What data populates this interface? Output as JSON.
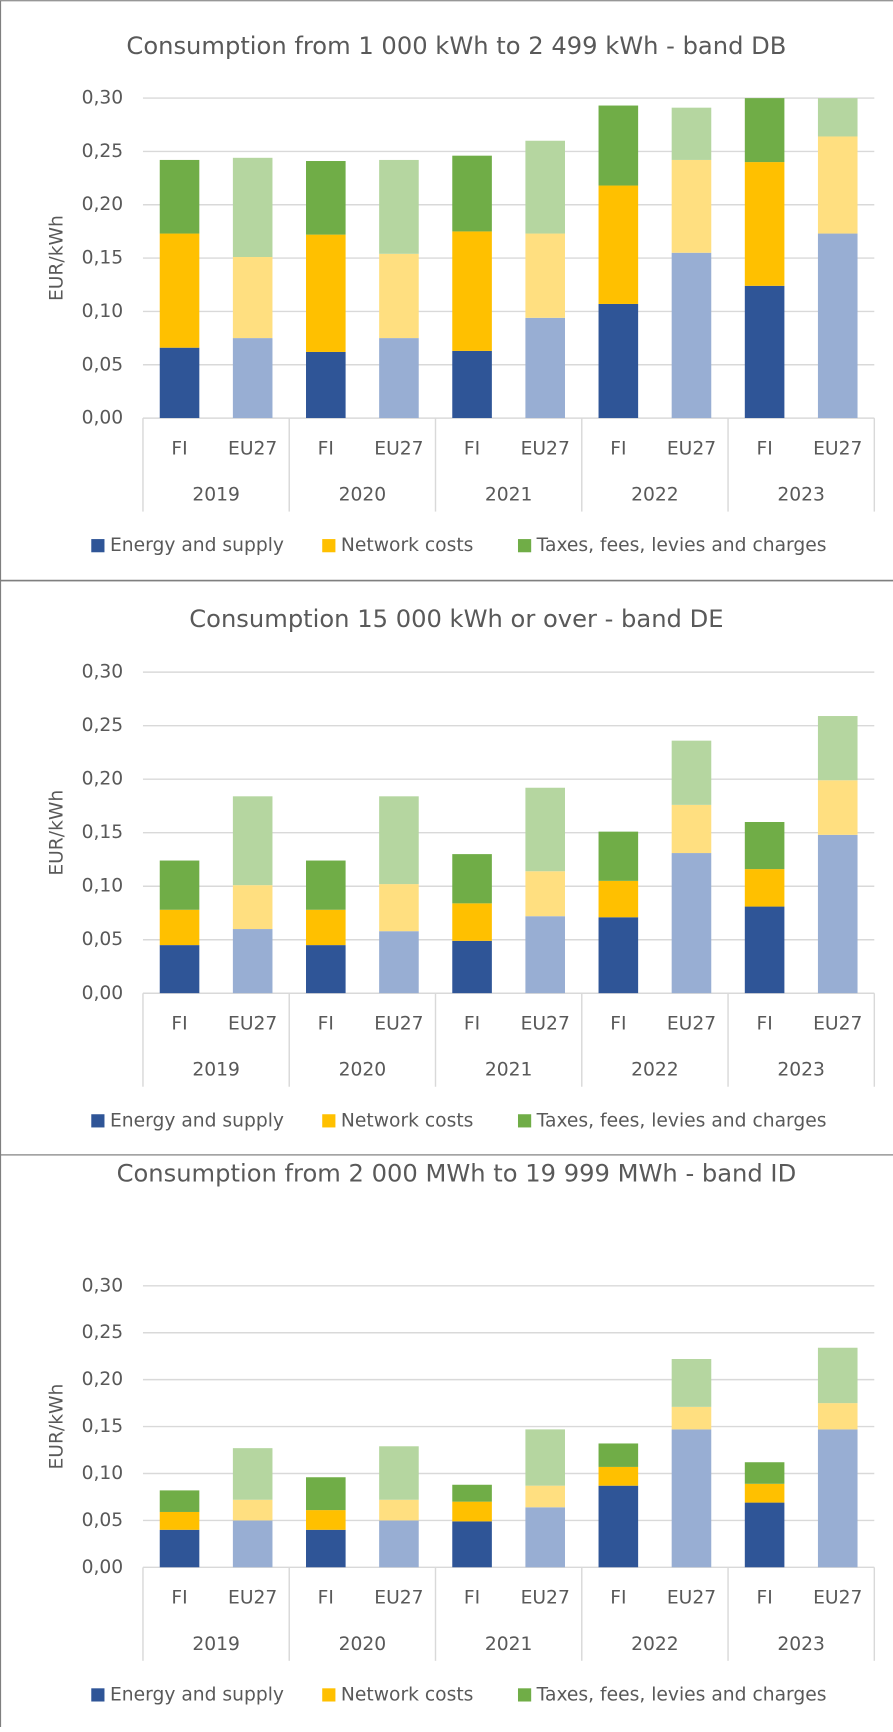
{
  "chart_data": [
    {
      "type": "bar",
      "stacked": true,
      "title": "Consumption from 1 000 kWh to 2 499 kWh - band DB",
      "ylabel": "EUR/kWh",
      "categories": [
        "FI",
        "EU27",
        "FI",
        "EU27",
        "FI",
        "EU27",
        "FI",
        "EU27",
        "FI",
        "EU27"
      ],
      "groups": [
        "2019",
        "2020",
        "2021",
        "2022",
        "2023"
      ],
      "series": [
        {
          "name": "Energy and supply",
          "color": "#2f5597",
          "light_color": "#98aed3",
          "values": [
            0.066,
            0.075,
            0.062,
            0.075,
            0.063,
            0.094,
            0.107,
            0.155,
            0.124,
            0.173
          ]
        },
        {
          "name": "Network costs",
          "color": "#ffc000",
          "light_color": "#ffdf80",
          "values": [
            0.107,
            0.076,
            0.11,
            0.079,
            0.112,
            0.079,
            0.111,
            0.087,
            0.116,
            0.091
          ]
        },
        {
          "name": "Taxes, fees, levies and charges",
          "color": "#70ad47",
          "light_color": "#b5d6a0",
          "values": [
            0.069,
            0.093,
            0.069,
            0.088,
            0.071,
            0.087,
            0.075,
            0.049,
            0.065,
            0.04
          ]
        }
      ],
      "ylim": [
        0,
        0.3
      ],
      "yticks": [
        {
          "value": 0,
          "label": "0,00"
        },
        {
          "value": 0.05,
          "label": "0,05"
        },
        {
          "value": 0.1,
          "label": "0,10"
        },
        {
          "value": 0.15,
          "label": "0,15"
        },
        {
          "value": 0.2,
          "label": "0,20"
        },
        {
          "value": 0.25,
          "label": "0,25"
        },
        {
          "value": 0.3,
          "label": "0,30"
        }
      ],
      "grid": true,
      "legend": "bottom"
    },
    {
      "type": "bar",
      "stacked": true,
      "title": "Consumption 15 000 kWh or over - band DE",
      "ylabel": "EUR/kWh",
      "categories": [
        "FI",
        "EU27",
        "FI",
        "EU27",
        "FI",
        "EU27",
        "FI",
        "EU27",
        "FI",
        "EU27"
      ],
      "groups": [
        "2019",
        "2020",
        "2021",
        "2022",
        "2023"
      ],
      "series": [
        {
          "name": "Energy and supply",
          "color": "#2f5597",
          "light_color": "#98aed3",
          "values": [
            0.045,
            0.06,
            0.045,
            0.058,
            0.049,
            0.072,
            0.071,
            0.131,
            0.081,
            0.148
          ]
        },
        {
          "name": "Network costs",
          "color": "#ffc000",
          "light_color": "#ffdf80",
          "values": [
            0.033,
            0.041,
            0.033,
            0.044,
            0.035,
            0.042,
            0.034,
            0.045,
            0.035,
            0.051
          ]
        },
        {
          "name": "Taxes, fees, levies and charges",
          "color": "#70ad47",
          "light_color": "#b5d6a0",
          "values": [
            0.046,
            0.083,
            0.046,
            0.082,
            0.046,
            0.078,
            0.046,
            0.06,
            0.044,
            0.06
          ]
        }
      ],
      "ylim": [
        0,
        0.3
      ],
      "yticks": [
        {
          "value": 0,
          "label": "0,00"
        },
        {
          "value": 0.05,
          "label": "0,05"
        },
        {
          "value": 0.1,
          "label": "0,10"
        },
        {
          "value": 0.15,
          "label": "0,15"
        },
        {
          "value": 0.2,
          "label": "0,20"
        },
        {
          "value": 0.25,
          "label": "0,25"
        },
        {
          "value": 0.3,
          "label": "0,30"
        }
      ],
      "grid": true,
      "legend": "bottom"
    },
    {
      "type": "bar",
      "stacked": true,
      "title": "Consumption from 2 000 MWh to 19 999 MWh - band ID",
      "ylabel": "EUR/kWh",
      "categories": [
        "FI",
        "EU27",
        "FI",
        "EU27",
        "FI",
        "EU27",
        "FI",
        "EU27",
        "FI",
        "EU27"
      ],
      "groups": [
        "2019",
        "2020",
        "2021",
        "2022",
        "2023"
      ],
      "series": [
        {
          "name": "Energy and supply",
          "color": "#2f5597",
          "light_color": "#98aed3",
          "values": [
            0.04,
            0.05,
            0.04,
            0.05,
            0.049,
            0.064,
            0.087,
            0.147,
            0.069,
            0.147
          ]
        },
        {
          "name": "Network costs",
          "color": "#ffc000",
          "light_color": "#ffdf80",
          "values": [
            0.019,
            0.022,
            0.021,
            0.022,
            0.021,
            0.023,
            0.02,
            0.024,
            0.02,
            0.028
          ]
        },
        {
          "name": "Taxes, fees, levies and charges",
          "color": "#70ad47",
          "light_color": "#b5d6a0",
          "values": [
            0.023,
            0.055,
            0.035,
            0.057,
            0.018,
            0.06,
            0.025,
            0.051,
            0.023,
            0.059
          ]
        }
      ],
      "ylim": [
        0,
        0.3
      ],
      "yticks": [
        {
          "value": 0,
          "label": "0,00"
        },
        {
          "value": 0.05,
          "label": "0,05"
        },
        {
          "value": 0.1,
          "label": "0,10"
        },
        {
          "value": 0.15,
          "label": "0,15"
        },
        {
          "value": 0.2,
          "label": "0,20"
        },
        {
          "value": 0.25,
          "label": "0,25"
        },
        {
          "value": 0.3,
          "label": "0,30"
        }
      ],
      "grid": true,
      "legend": "bottom"
    }
  ]
}
